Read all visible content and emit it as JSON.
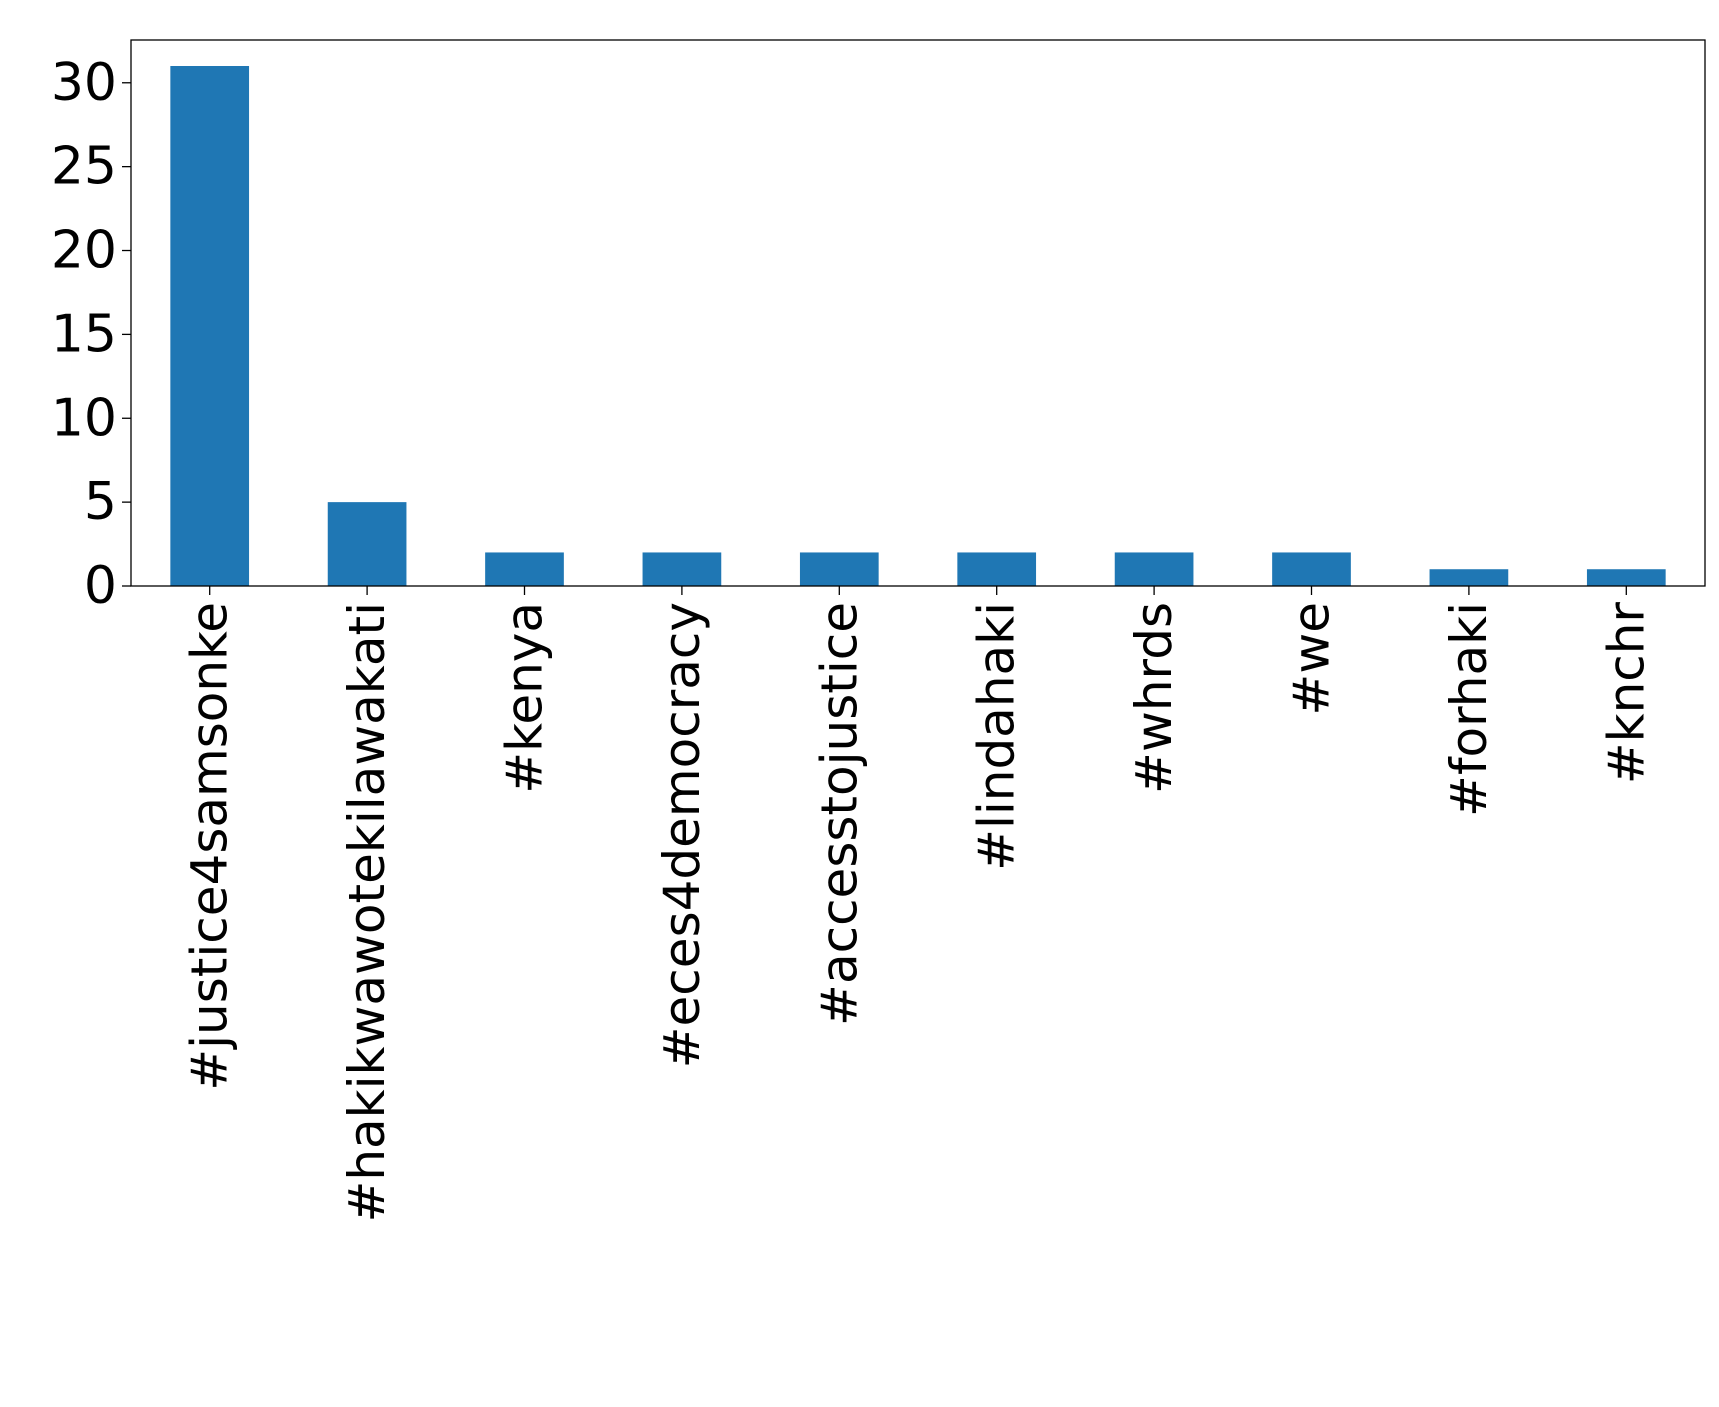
{
  "chart_data": {
    "type": "bar",
    "title": "",
    "xlabel": "",
    "ylabel": "",
    "categories": [
      "#justice4samsonke",
      "#hakikwawotekilawakati",
      "#kenya",
      "#eces4democracy",
      "#accesstojustice",
      "#lindahaki",
      "#whrds",
      "#we",
      "#forhaki",
      "#knchr"
    ],
    "values": [
      31,
      5,
      2,
      2,
      2,
      2,
      2,
      2,
      1,
      1
    ],
    "ylim": [
      0,
      32.55
    ],
    "yticks": [
      0,
      5,
      10,
      15,
      20,
      25,
      30
    ],
    "ytick_labels": [
      "0",
      "5",
      "10",
      "15",
      "20",
      "25",
      "30"
    ],
    "bar_color": "#1f77b4",
    "grid": false,
    "legend": "none"
  }
}
